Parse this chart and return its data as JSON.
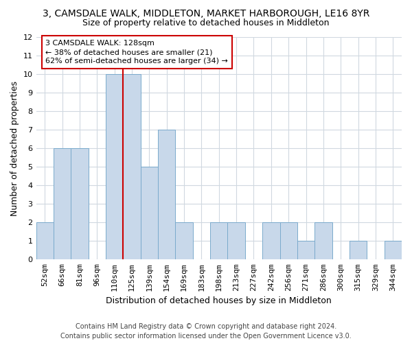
{
  "title": "3, CAMSDALE WALK, MIDDLETON, MARKET HARBOROUGH, LE16 8YR",
  "subtitle": "Size of property relative to detached houses in Middleton",
  "xlabel": "Distribution of detached houses by size in Middleton",
  "ylabel": "Number of detached properties",
  "bin_labels": [
    "52sqm",
    "66sqm",
    "81sqm",
    "96sqm",
    "110sqm",
    "125sqm",
    "139sqm",
    "154sqm",
    "169sqm",
    "183sqm",
    "198sqm",
    "213sqm",
    "227sqm",
    "242sqm",
    "256sqm",
    "271sqm",
    "286sqm",
    "300sqm",
    "315sqm",
    "329sqm",
    "344sqm"
  ],
  "bar_heights": [
    2,
    6,
    6,
    0,
    10,
    10,
    5,
    7,
    2,
    0,
    2,
    2,
    0,
    2,
    2,
    1,
    2,
    0,
    1,
    0,
    1
  ],
  "bar_color": "#c8d8ea",
  "bar_edge_color": "#7aaacc",
  "highlight_line_color": "#cc0000",
  "highlight_bin_index": 5,
  "annotation_line1": "3 CAMSDALE WALK: 128sqm",
  "annotation_line2": "← 38% of detached houses are smaller (21)",
  "annotation_line3": "62% of semi-detached houses are larger (34) →",
  "annotation_box_color": "#ffffff",
  "annotation_box_edge_color": "#cc0000",
  "ylim": [
    0,
    12
  ],
  "yticks": [
    0,
    1,
    2,
    3,
    4,
    5,
    6,
    7,
    8,
    9,
    10,
    11,
    12
  ],
  "footer_line1": "Contains HM Land Registry data © Crown copyright and database right 2024.",
  "footer_line2": "Contains public sector information licensed under the Open Government Licence v3.0.",
  "background_color": "#ffffff",
  "grid_color": "#d0d8e0",
  "title_fontsize": 10,
  "subtitle_fontsize": 9,
  "axis_label_fontsize": 9,
  "tick_fontsize": 8,
  "annotation_fontsize": 8,
  "footer_fontsize": 7
}
